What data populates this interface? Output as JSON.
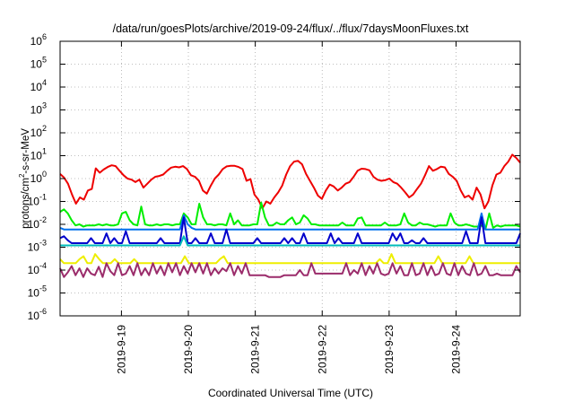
{
  "chart_data": {
    "type": "line",
    "title": "/data/run/goesPlots/archive/2019-09-24/flux/../flux/7daysMoonFluxes.txt",
    "xlabel": "Coordinated Universal Time (UTC)",
    "ylabel": "protons/cm²-s-sr-MeV",
    "yscale": "log",
    "ylim": [
      1e-06,
      1000000.0
    ],
    "y_ticks": [
      {
        "value": 1e-06,
        "base": "10",
        "exp": "-6"
      },
      {
        "value": 1e-05,
        "base": "10",
        "exp": "-5"
      },
      {
        "value": 0.0001,
        "base": "10",
        "exp": "-4"
      },
      {
        "value": 0.001,
        "base": "10",
        "exp": "-3"
      },
      {
        "value": 0.01,
        "base": "10",
        "exp": "-2"
      },
      {
        "value": 0.1,
        "base": "10",
        "exp": "-1"
      },
      {
        "value": 1.0,
        "base": "10",
        "exp": "0"
      },
      {
        "value": 10.0,
        "base": "10",
        "exp": "1"
      },
      {
        "value": 100.0,
        "base": "10",
        "exp": "2"
      },
      {
        "value": 1000.0,
        "base": "10",
        "exp": "3"
      },
      {
        "value": 10000.0,
        "base": "10",
        "exp": "4"
      },
      {
        "value": 100000.0,
        "base": "10",
        "exp": "5"
      },
      {
        "value": 1000000.0,
        "base": "10",
        "exp": "6"
      }
    ],
    "xlim": [
      "2019-09-18 02:00",
      "2019-09-24 23:00"
    ],
    "x_ticks": [
      "2019-9-19",
      "2019-9-20",
      "2019-9-21",
      "2019-9-22",
      "2019-9-23",
      "2019-9-24"
    ],
    "grid": true,
    "legend": "none",
    "series_colors": [
      "#ee0000",
      "#00ee00",
      "#0070ee",
      "#0000cc",
      "#00bbbb",
      "#eeee00",
      "#9b2c6b"
    ],
    "series": [
      {
        "color": "#ee0000",
        "values": [
          1.6,
          1.1,
          0.6,
          0.2,
          0.08,
          0.15,
          0.12,
          0.3,
          0.35,
          2.8,
          1.8,
          2.5,
          3.2,
          3.8,
          3.5,
          2.2,
          1.4,
          1.0,
          0.9,
          0.7,
          0.9,
          0.4,
          0.6,
          0.9,
          1.2,
          1.3,
          1.5,
          2.2,
          3.0,
          3.3,
          3.1,
          3.5,
          2.6,
          1.4,
          1.2,
          0.8,
          0.3,
          0.22,
          0.5,
          1.0,
          1.5,
          2.6,
          3.4,
          3.6,
          3.6,
          3.2,
          2.6,
          0.8,
          0.95,
          0.2,
          0.12,
          0.05,
          0.1,
          0.08,
          0.15,
          0.25,
          0.5,
          1.5,
          3.5,
          5.5,
          6.0,
          4.2,
          1.6,
          0.8,
          0.4,
          0.18,
          0.13,
          0.3,
          0.55,
          0.45,
          0.3,
          0.4,
          0.6,
          0.7,
          1.2,
          2.2,
          2.7,
          2.6,
          2.3,
          1.2,
          0.9,
          0.8,
          0.85,
          1.0,
          0.7,
          0.6,
          0.4,
          0.25,
          0.15,
          0.2,
          0.35,
          0.6,
          1.4,
          3.5,
          2.2,
          2.6,
          3.3,
          3.1,
          1.6,
          1.2,
          0.8,
          0.3,
          0.15,
          0.18,
          0.12,
          0.4,
          0.2,
          0.05,
          0.1,
          0.5,
          1.5,
          1.8,
          3.5,
          5.5,
          11,
          8,
          5
        ]
      },
      {
        "color": "#00ee00",
        "values": [
          0.035,
          0.045,
          0.03,
          0.015,
          0.009,
          0.01,
          0.008,
          0.009,
          0.009,
          0.009,
          0.01,
          0.009,
          0.01,
          0.009,
          0.009,
          0.01,
          0.03,
          0.035,
          0.015,
          0.01,
          0.009,
          0.06,
          0.01,
          0.009,
          0.009,
          0.01,
          0.009,
          0.01,
          0.01,
          0.009,
          0.01,
          0.01,
          0.03,
          0.02,
          0.01,
          0.01,
          0.08,
          0.02,
          0.01,
          0.01,
          0.009,
          0.01,
          0.01,
          0.009,
          0.03,
          0.01,
          0.015,
          0.009,
          0.009,
          0.009,
          0.01,
          0.01,
          0.09,
          0.02,
          0.009,
          0.009,
          0.012,
          0.01,
          0.01,
          0.015,
          0.02,
          0.01,
          0.012,
          0.025,
          0.018,
          0.01,
          0.01,
          0.009,
          0.009,
          0.009,
          0.009,
          0.009,
          0.009,
          0.012,
          0.009,
          0.009,
          0.009,
          0.018,
          0.02,
          0.009,
          0.009,
          0.009,
          0.009,
          0.009,
          0.012,
          0.009,
          0.009,
          0.009,
          0.01,
          0.03,
          0.012,
          0.009,
          0.009,
          0.012,
          0.01,
          0.01,
          0.009,
          0.008,
          0.009,
          0.009,
          0.009,
          0.03,
          0.012,
          0.009,
          0.009,
          0.01,
          0.009,
          0.008,
          0.008,
          0.009,
          0.006,
          0.03,
          0.007,
          0.009,
          0.008,
          0.009,
          0.009,
          0.009,
          0.009,
          0.008
        ]
      },
      {
        "color": "#0070ee",
        "values": [
          0.007,
          0.006,
          0.006,
          0.006,
          0.006,
          0.006,
          0.006,
          0.006,
          0.006,
          0.006,
          0.006,
          0.006,
          0.006,
          0.006,
          0.006,
          0.006,
          0.006,
          0.006,
          0.006,
          0.006,
          0.006,
          0.006,
          0.006,
          0.006,
          0.006,
          0.006,
          0.006,
          0.006,
          0.006,
          0.006,
          0.006,
          0.006,
          0.025,
          0.01,
          0.007,
          0.006,
          0.006,
          0.006,
          0.006,
          0.006,
          0.006,
          0.006,
          0.006,
          0.006,
          0.006,
          0.006,
          0.006,
          0.006,
          0.006,
          0.006,
          0.006,
          0.006,
          0.006,
          0.006,
          0.006,
          0.006,
          0.006,
          0.006,
          0.006,
          0.006,
          0.006,
          0.006,
          0.006,
          0.006,
          0.006,
          0.006,
          0.006,
          0.006,
          0.006,
          0.006,
          0.006,
          0.006,
          0.006,
          0.006,
          0.006,
          0.006,
          0.006,
          0.006,
          0.006,
          0.006,
          0.006,
          0.006,
          0.006,
          0.006,
          0.006,
          0.006,
          0.006,
          0.006,
          0.006,
          0.006,
          0.006,
          0.006,
          0.006,
          0.006,
          0.006,
          0.006,
          0.006,
          0.006,
          0.006,
          0.006,
          0.006,
          0.006,
          0.006,
          0.006,
          0.006,
          0.006,
          0.006,
          0.006,
          0.006,
          0.03,
          0.006,
          0.006,
          0.006,
          0.006,
          0.006,
          0.006,
          0.006,
          0.006,
          0.006,
          0.006
        ]
      },
      {
        "color": "#0000cc",
        "values": [
          0.0025,
          0.003,
          0.002,
          0.0015,
          0.0015,
          0.0015,
          0.0015,
          0.0015,
          0.0025,
          0.0015,
          0.0015,
          0.0015,
          0.004,
          0.0015,
          0.0025,
          0.0015,
          0.0015,
          0.005,
          0.0015,
          0.0015,
          0.0015,
          0.0015,
          0.0015,
          0.0015,
          0.0015,
          0.0015,
          0.0025,
          0.0015,
          0.0015,
          0.0015,
          0.0015,
          0.0015,
          0.02,
          0.0015,
          0.0015,
          0.0025,
          0.0015,
          0.0015,
          0.0015,
          0.004,
          0.0015,
          0.0015,
          0.0015,
          0.006,
          0.0015,
          0.0015,
          0.0015,
          0.0015,
          0.0015,
          0.0015,
          0.0015,
          0.0025,
          0.0015,
          0.0015,
          0.0015,
          0.0015,
          0.0015,
          0.0015,
          0.0025,
          0.0015,
          0.0025,
          0.0015,
          0.0015,
          0.004,
          0.0015,
          0.0015,
          0.0015,
          0.0015,
          0.0015,
          0.0015,
          0.004,
          0.0015,
          0.0025,
          0.0015,
          0.0015,
          0.0015,
          0.0015,
          0.004,
          0.0015,
          0.0015,
          0.0015,
          0.0015,
          0.0015,
          0.0015,
          0.0015,
          0.0015,
          0.004,
          0.002,
          0.004,
          0.0015,
          0.0015,
          0.002,
          0.0015,
          0.0015,
          0.0025,
          0.0015,
          0.0015,
          0.0015,
          0.0015,
          0.0015,
          0.0015,
          0.0015,
          0.0015,
          0.0015,
          0.0015,
          0.005,
          0.0015,
          0.0015,
          0.0015,
          0.02,
          0.0015,
          0.0015,
          0.0015,
          0.0015,
          0.0015,
          0.0015,
          0.0015,
          0.0015,
          0.0015,
          0.004
        ]
      },
      {
        "color": "#00bbbb",
        "values": [
          0.0012,
          0.0012,
          0.0012,
          0.0012,
          0.0012,
          0.0012,
          0.0012,
          0.0012,
          0.0012,
          0.0012,
          0.0012,
          0.0012,
          0.0012,
          0.0012,
          0.0012,
          0.0012,
          0.0012,
          0.0012,
          0.0012,
          0.0012,
          0.0012,
          0.0012,
          0.0012,
          0.0012,
          0.0012,
          0.0012,
          0.0012,
          0.0012,
          0.0012,
          0.0012,
          0.0012,
          0.0012,
          0.003,
          0.0012,
          0.0012,
          0.0012,
          0.0012,
          0.0012,
          0.0012,
          0.0012,
          0.0012,
          0.0012,
          0.0012,
          0.0012,
          0.0012,
          0.0012,
          0.0012,
          0.0012,
          0.0012,
          0.0012,
          0.0012,
          0.0012,
          0.0012,
          0.0012,
          0.0012,
          0.0012,
          0.0012,
          0.0012,
          0.0012,
          0.0012,
          0.0012,
          0.0012,
          0.0012,
          0.0012,
          0.0012,
          0.0012,
          0.0012,
          0.0012,
          0.0012,
          0.0012,
          0.0012,
          0.0012,
          0.0012,
          0.0012,
          0.0012,
          0.0012,
          0.0012,
          0.0012,
          0.0012,
          0.0012,
          0.0012,
          0.0012,
          0.0012,
          0.0012,
          0.0012,
          0.0012,
          0.0012,
          0.0012,
          0.0012,
          0.0012,
          0.0012,
          0.0012,
          0.0012,
          0.0012,
          0.0012,
          0.0012,
          0.0012,
          0.0012,
          0.0012,
          0.0012,
          0.0012,
          0.0012,
          0.0012,
          0.0012,
          0.0012,
          0.0012,
          0.0012,
          0.0012,
          0.0012,
          0.0012,
          0.0012,
          0.0012,
          0.0012,
          0.0012,
          0.0012,
          0.0012,
          0.0012,
          0.0012,
          0.0012,
          0.0012
        ]
      },
      {
        "color": "#eeee00",
        "values": [
          0.0003,
          0.0002,
          0.0002,
          0.0002,
          0.0002,
          0.0003,
          0.0004,
          0.0002,
          0.0002,
          0.0005,
          0.0003,
          0.0002,
          0.0002,
          0.0002,
          0.0003,
          0.0002,
          0.0002,
          0.0002,
          0.0002,
          0.0003,
          0.0002,
          0.0002,
          0.0002,
          0.0002,
          0.0002,
          0.0002,
          0.0002,
          0.0002,
          0.0002,
          0.0002,
          0.0002,
          0.0002,
          0.0004,
          0.0002,
          0.0002,
          0.0002,
          0.0002,
          0.0002,
          0.0002,
          0.0002,
          0.0002,
          0.0003,
          0.0004,
          0.0002,
          0.0002,
          0.0002,
          0.0002,
          0.0002,
          0.0002,
          0.0002,
          0.0002,
          0.0002,
          0.0002,
          0.0002,
          0.0002,
          0.0002,
          0.0002,
          0.0002,
          0.0002,
          0.0002,
          0.0002,
          0.0002,
          0.0002,
          0.0002,
          0.0002,
          0.0002,
          0.0002,
          0.0002,
          0.0002,
          0.0002,
          0.0002,
          0.0002,
          0.0002,
          0.0002,
          0.0002,
          0.0002,
          0.0002,
          0.0002,
          0.0002,
          0.0002,
          0.0002,
          0.0002,
          0.0003,
          0.0002,
          0.0002,
          0.0005,
          0.0002,
          0.0002,
          0.0002,
          0.0002,
          0.0002,
          0.0002,
          0.0002,
          0.0002,
          0.0002,
          0.0002,
          0.0002,
          0.0004,
          0.0002,
          0.0002,
          0.0002,
          0.0002,
          0.0002,
          0.0002,
          0.0002,
          0.0004,
          0.0002,
          0.0002,
          0.0002,
          0.0002,
          0.0002,
          0.0002,
          0.0002,
          0.0002,
          0.0002,
          0.0002,
          0.0002,
          0.0002,
          0.0002
        ]
      },
      {
        "color": "#9b2c6b",
        "values": [
          0.00012,
          5e-05,
          8e-05,
          0.00015,
          6e-05,
          0.00012,
          5e-05,
          0.00012,
          7e-05,
          6e-05,
          0.00014,
          5e-05,
          0.0002,
          9e-05,
          6e-05,
          0.0002,
          6e-05,
          7e-05,
          0.00015,
          6e-05,
          0.0002,
          6e-05,
          0.00012,
          6e-05,
          0.0002,
          7e-05,
          0.00015,
          6e-05,
          0.0002,
          8e-05,
          0.0002,
          6e-05,
          0.00015,
          7e-05,
          0.0002,
          8e-05,
          0.0002,
          7e-05,
          0.0002,
          6e-05,
          0.00012,
          7e-05,
          0.00012,
          9e-05,
          0.0002,
          6e-05,
          0.00015,
          7e-05,
          0.0002,
          6e-05,
          6e-05,
          6e-05,
          6e-05,
          6e-05,
          5e-05,
          5e-05,
          5e-05,
          5e-05,
          6e-05,
          6e-05,
          6e-05,
          6e-05,
          0.0001,
          6e-05,
          6e-05,
          0.0002,
          7e-05,
          7e-05,
          7e-05,
          7e-05,
          7e-05,
          7e-05,
          7e-05,
          7e-05,
          0.0002,
          6e-05,
          0.0001,
          7e-05,
          0.0002,
          6e-05,
          0.00015,
          7e-05,
          0.0002,
          7e-05,
          6e-05,
          7e-05,
          0.0002,
          7e-05,
          0.00015,
          6e-05,
          6e-05,
          0.0002,
          6e-05,
          7e-05,
          0.0002,
          6e-05,
          0.00015,
          6e-05,
          7e-05,
          0.0002,
          7e-05,
          6e-05,
          0.0002,
          6e-05,
          0.00015,
          7e-05,
          6e-05,
          0.0002,
          6e-05,
          7e-05,
          0.00015,
          6e-05,
          6e-05,
          7e-05,
          6e-05,
          6e-05,
          6e-05,
          6e-05,
          0.00015,
          8e-05
        ]
      }
    ]
  }
}
